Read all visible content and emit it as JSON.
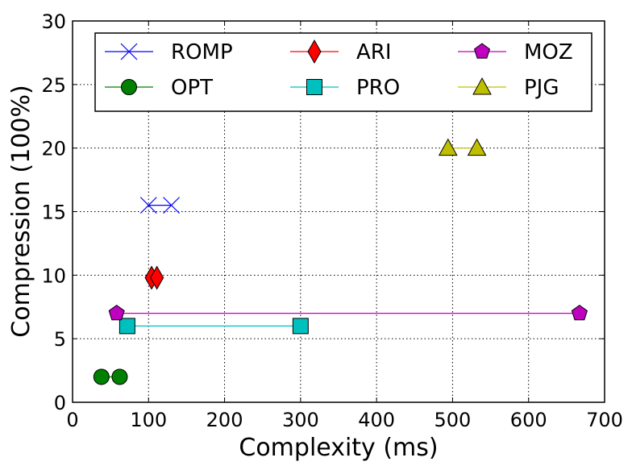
{
  "chart_data": {
    "type": "line",
    "xlabel": "Complexity (ms)",
    "ylabel": "Compression (100%)",
    "xlim": [
      0,
      700
    ],
    "ylim": [
      0,
      30
    ],
    "xticks": [
      0,
      100,
      200,
      300,
      400,
      500,
      600,
      700
    ],
    "yticks": [
      0,
      5,
      10,
      15,
      20,
      25,
      30
    ],
    "grid": true,
    "legend_position": "top",
    "series": [
      {
        "name": "ROMP",
        "color": "#0000ff",
        "marker": "x",
        "points": [
          [
            100,
            15.5
          ],
          [
            130,
            15.5
          ]
        ]
      },
      {
        "name": "OPT",
        "color": "#008000",
        "marker": "circle",
        "points": [
          [
            38,
            2
          ],
          [
            62,
            2
          ]
        ]
      },
      {
        "name": "ARI",
        "color": "#ff0000",
        "marker": "diamond",
        "points": [
          [
            104,
            9.8
          ],
          [
            111,
            9.8
          ]
        ]
      },
      {
        "name": "PRO",
        "color": "#00bfbf",
        "marker": "square",
        "points": [
          [
            72,
            6
          ],
          [
            300,
            6
          ]
        ]
      },
      {
        "name": "MOZ",
        "color": "#bf00bf",
        "marker": "pentagon",
        "points": [
          [
            58,
            7
          ],
          [
            667,
            7
          ]
        ]
      },
      {
        "name": "PJG",
        "color": "#bfbf00",
        "marker": "triangle",
        "points": [
          [
            494,
            20
          ],
          [
            532,
            20
          ]
        ]
      }
    ]
  }
}
